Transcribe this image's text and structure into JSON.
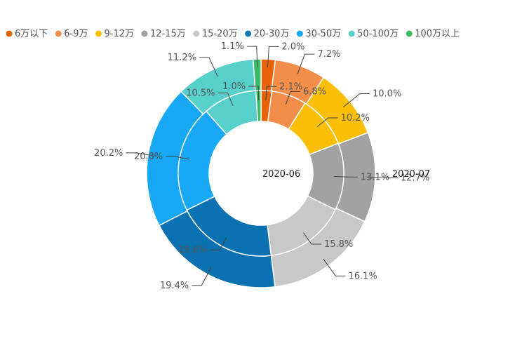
{
  "chart_data": {
    "type": "pie",
    "variant": "nested-donut",
    "categories": [
      "6万以下",
      "6-9万",
      "9-12万",
      "12-15万",
      "15-20万",
      "20-30万",
      "30-50万",
      "50-100万",
      "100万以上"
    ],
    "colors": [
      "#e8620a",
      "#f28e4a",
      "#fbbf08",
      "#a2a2a2",
      "#c8c8c8",
      "#0a72b0",
      "#16a8f5",
      "#57cfcb",
      "#3dbb65"
    ],
    "series": [
      {
        "name": "2020-06",
        "ring": "inner",
        "values": [
          2.1,
          6.8,
          10.2,
          13.1,
          15.8,
          19.6,
          20.8,
          10.5,
          1.0
        ],
        "labels": [
          "2.1%",
          "6.8%",
          "10.2%",
          "13.1%",
          "15.8%",
          "19.6%",
          "20.8%",
          "10.5%",
          "1.0%"
        ]
      },
      {
        "name": "2020-07",
        "ring": "outer",
        "values": [
          2.0,
          7.2,
          10.0,
          12.7,
          16.1,
          19.4,
          20.2,
          11.2,
          1.1
        ],
        "labels": [
          "2.0%",
          "7.2%",
          "10.0%",
          "12.7%",
          "16.1%",
          "19.4%",
          "20.2%",
          "11.2%",
          "1.1%"
        ]
      }
    ],
    "legend": "top"
  }
}
